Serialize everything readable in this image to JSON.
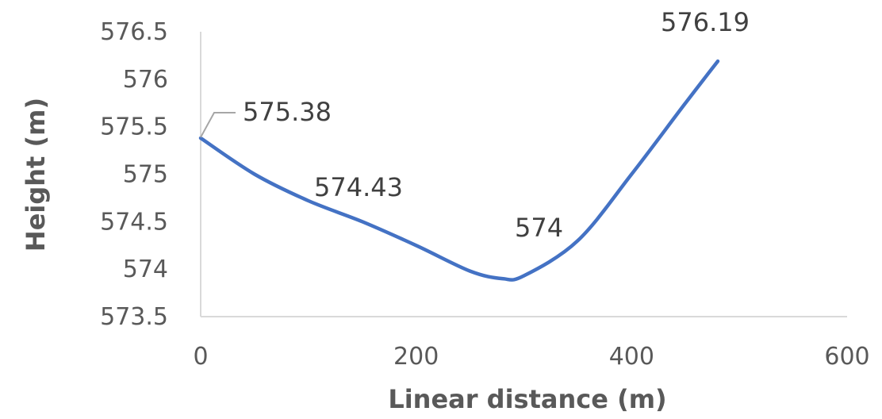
{
  "chart_data": {
    "type": "line",
    "title": "",
    "xlabel": "Linear distance (m)",
    "ylabel": "Height (m)",
    "xlim": [
      0,
      600
    ],
    "ylim": [
      573.5,
      576.5
    ],
    "x_ticks": [
      "0",
      "200",
      "400",
      "600"
    ],
    "y_ticks": [
      "573.5",
      "574",
      "574.5",
      "575",
      "575.5",
      "576",
      "576.5"
    ],
    "grid": false,
    "legend": "none",
    "series": [
      {
        "color": "#4472C4",
        "smooth": true,
        "x": [
          0,
          50,
          100,
          150,
          200,
          250,
          280,
          300,
          350,
          400,
          450,
          480
        ],
        "y": [
          575.38,
          575.0,
          574.72,
          574.5,
          574.25,
          573.98,
          573.9,
          573.93,
          574.3,
          575.0,
          575.75,
          576.19
        ]
      }
    ],
    "data_labels": [
      {
        "text": "575.38",
        "color": "#404040"
      },
      {
        "text": "574.43",
        "color": "#404040"
      },
      {
        "text": "574",
        "color": "#FF0000"
      },
      {
        "text": "576.19",
        "color": "#404040"
      }
    ]
  }
}
